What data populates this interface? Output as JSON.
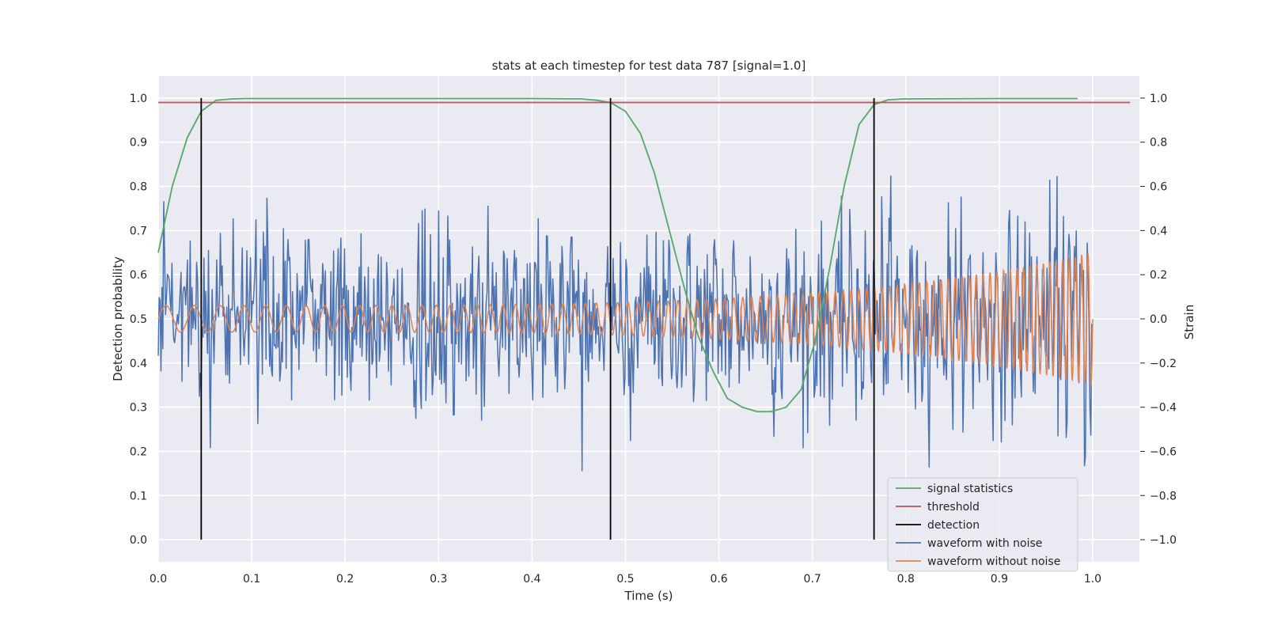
{
  "chart_data": {
    "type": "line",
    "title": "stats at each timestep for test data 787 [signal=1.0]",
    "xlabel": "Time (s)",
    "ylabel_left": "Detection probability",
    "ylabel_right": "Strain",
    "xlim": [
      0.0,
      1.05
    ],
    "ylim_left": [
      -0.05,
      1.05
    ],
    "ylim_right": [
      -1.1,
      1.1
    ],
    "x_ticks": [
      "0.0",
      "0.1",
      "0.2",
      "0.3",
      "0.4",
      "0.5",
      "0.6",
      "0.7",
      "0.8",
      "0.9",
      "1.0"
    ],
    "y_ticks_left": [
      "0.0",
      "0.1",
      "0.2",
      "0.3",
      "0.4",
      "0.5",
      "0.6",
      "0.7",
      "0.8",
      "0.9",
      "1.0"
    ],
    "y_ticks_right": [
      "−1.0",
      "−0.8",
      "−0.6",
      "−0.4",
      "−0.2",
      "0.0",
      "0.2",
      "0.4",
      "0.6",
      "0.8",
      "1.0"
    ],
    "grid": true,
    "legend_position": "lower-right",
    "series": [
      {
        "name": "signal statistics",
        "color": "#55a868",
        "axis": "left",
        "x": [
          0.0,
          0.015,
          0.031,
          0.046,
          0.062,
          0.078,
          0.093,
          0.109,
          0.2,
          0.3,
          0.4,
          0.453,
          0.469,
          0.484,
          0.5,
          0.516,
          0.531,
          0.547,
          0.563,
          0.578,
          0.594,
          0.609,
          0.625,
          0.641,
          0.656,
          0.672,
          0.688,
          0.703,
          0.719,
          0.734,
          0.75,
          0.766,
          0.781,
          0.797,
          0.9,
          0.984
        ],
        "y": [
          0.65,
          0.8,
          0.91,
          0.97,
          0.995,
          0.998,
          0.999,
          0.999,
          0.999,
          0.999,
          0.999,
          0.998,
          0.995,
          0.99,
          0.97,
          0.92,
          0.83,
          0.7,
          0.57,
          0.46,
          0.38,
          0.32,
          0.3,
          0.29,
          0.29,
          0.3,
          0.34,
          0.45,
          0.62,
          0.8,
          0.94,
          0.985,
          0.996,
          0.998,
          0.999,
          0.999
        ]
      },
      {
        "name": "threshold",
        "color": "#c44e52",
        "axis": "left",
        "x": [
          0.0,
          1.04
        ],
        "y": [
          0.99,
          0.99
        ]
      },
      {
        "name": "detection",
        "color": "#000000",
        "axis": "left",
        "x_positions": [
          0.046,
          0.484,
          0.766
        ],
        "y_range": [
          0.0,
          1.0
        ]
      },
      {
        "name": "waveform with noise",
        "color": "#4c72b0",
        "axis": "right",
        "noise": "gaussian",
        "std": 0.2,
        "n_points": 1024,
        "x_range": [
          0.0,
          1.0
        ]
      },
      {
        "name": "waveform without noise",
        "color": "#dd8452",
        "axis": "right",
        "chirp": {
          "f_start_hz": 30,
          "f_end_hz": 150,
          "amp_start": 0.06,
          "amp_end": 0.3
        },
        "x_range": [
          0.0,
          1.0
        ]
      }
    ]
  }
}
